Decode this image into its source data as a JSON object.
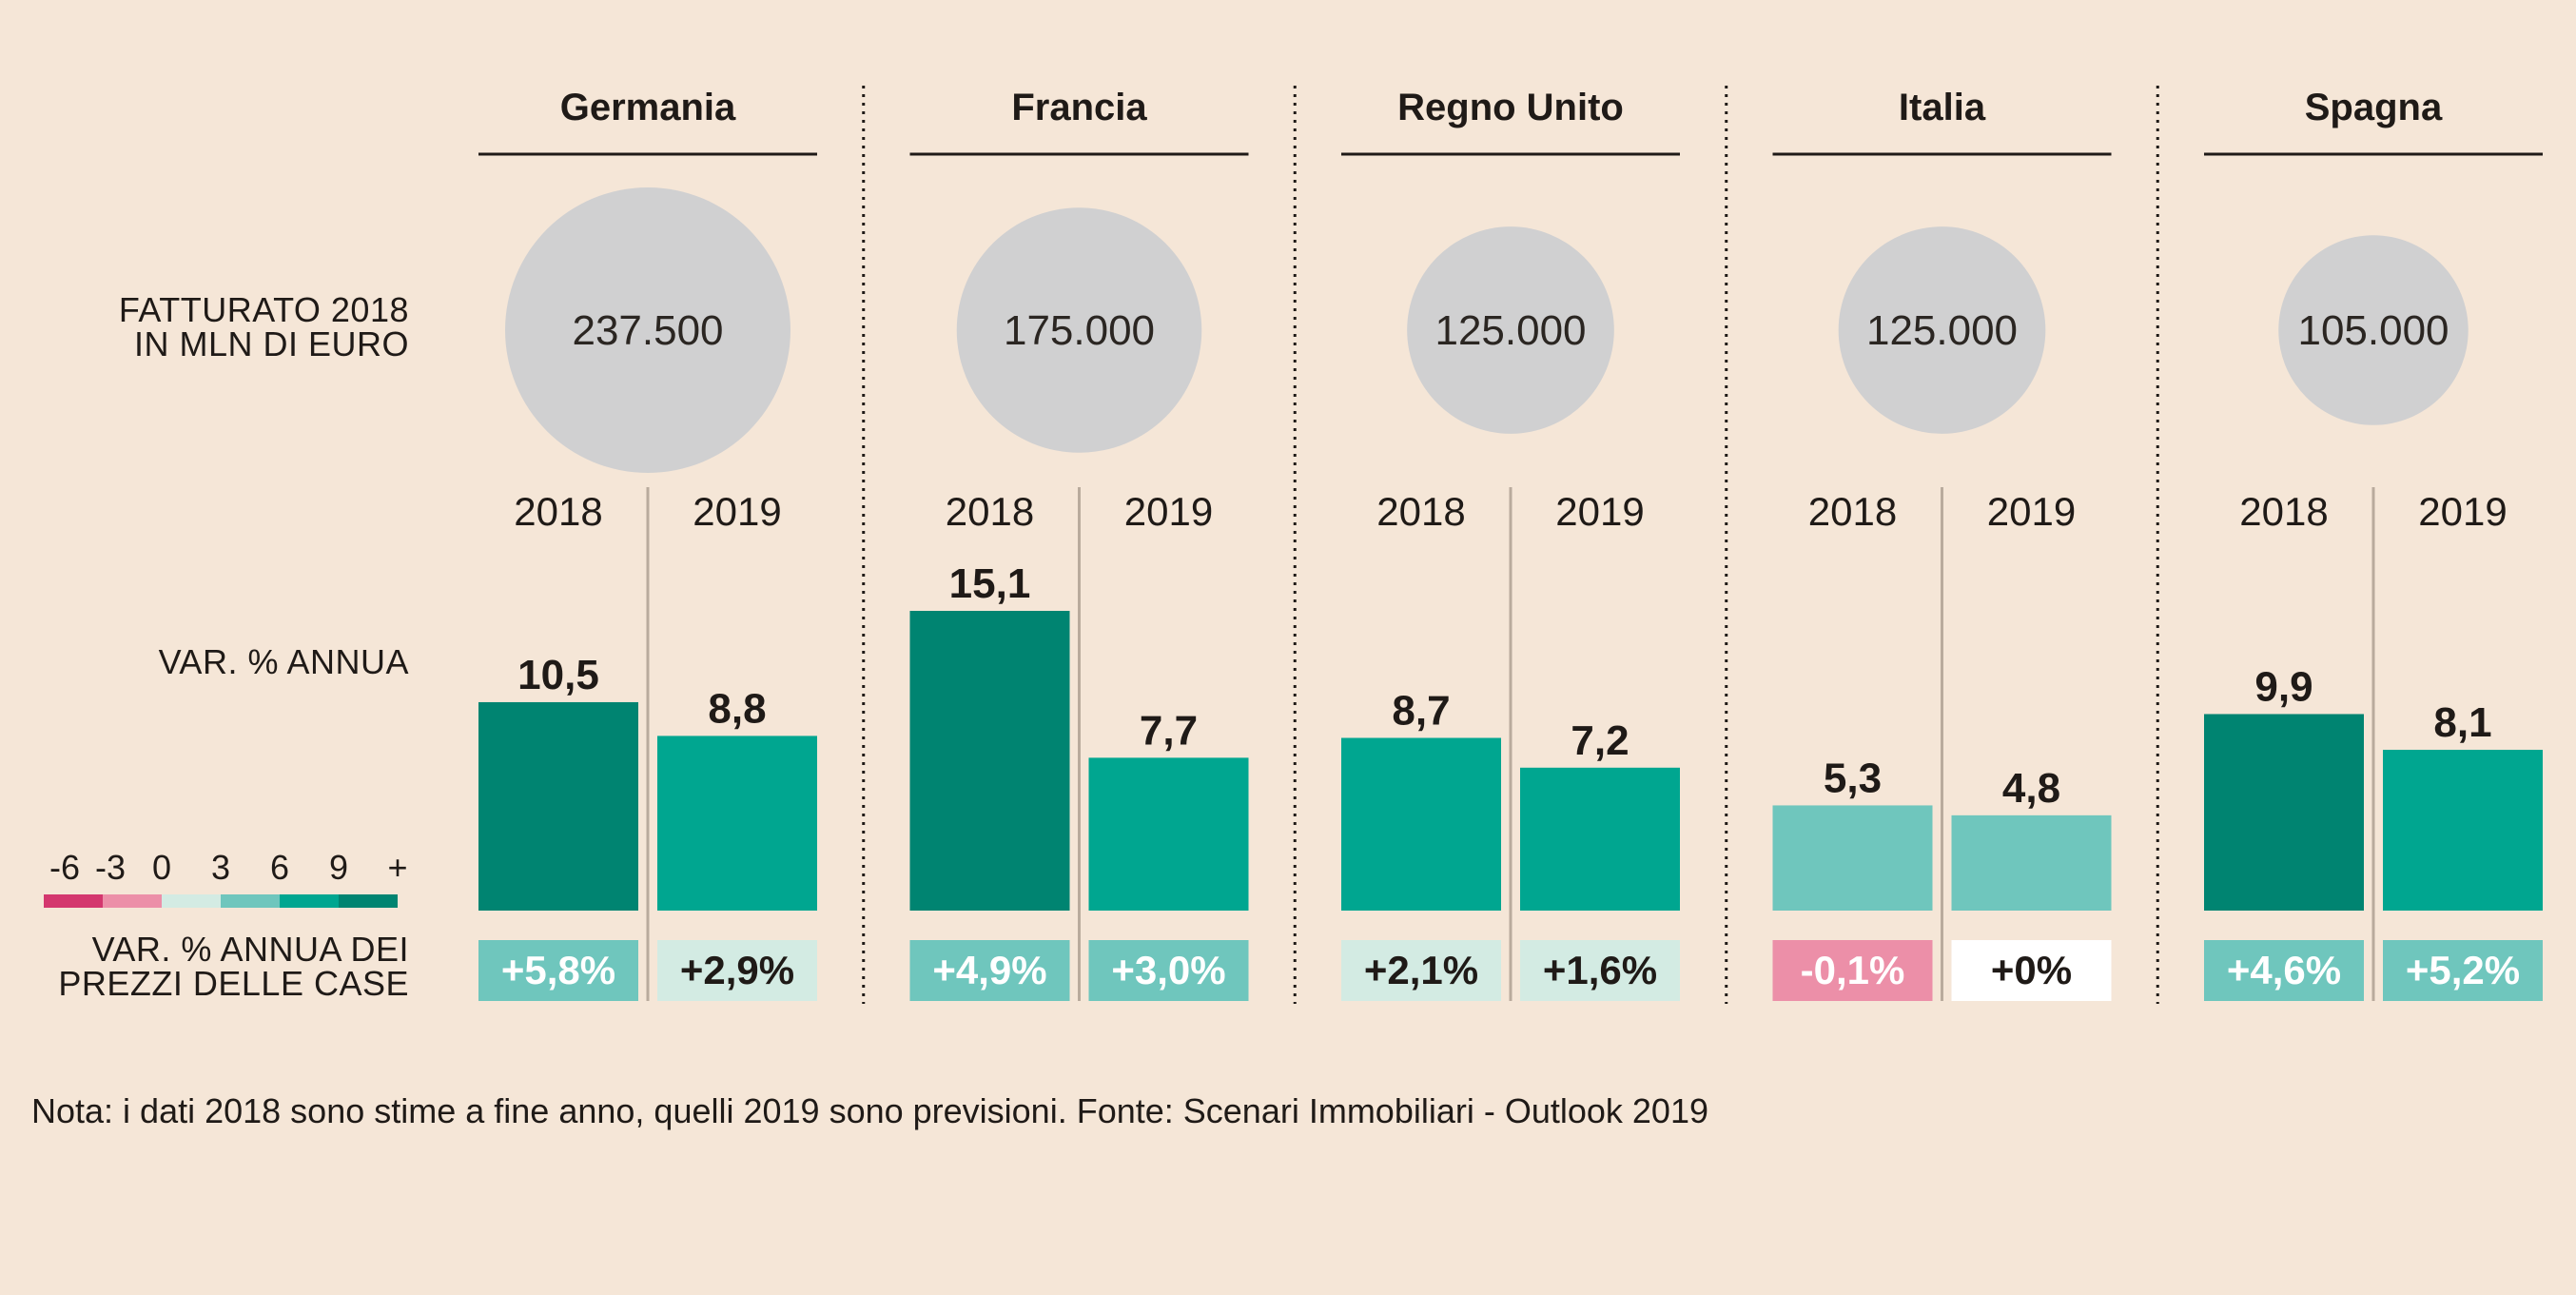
{
  "row_labels": {
    "revenue_line1": "FATTURATO 2018",
    "revenue_line2": "IN MLN DI EURO",
    "annual_change": "VAR. % ANNUA",
    "prices_line1": "VAR. % ANNUA DEI",
    "prices_line2": "PREZZI DELLE CASE"
  },
  "legend": {
    "ticks": [
      "-6",
      "-3",
      "0",
      "3",
      "6",
      "9",
      "+"
    ],
    "colors": [
      "#d4376e",
      "#ec8fa8",
      "#d3ebe3",
      "#6fc6bd",
      "#00a690",
      "#008471"
    ]
  },
  "note": "Nota: i dati 2018 sono stime a fine anno, quelli 2019 sono previsioni. Fonte: Scenari Immobiliari - Outlook 2019",
  "chart_data": {
    "type": "bar",
    "categories": [
      "Germania",
      "Francia",
      "Regno Unito",
      "Italia",
      "Spagna"
    ],
    "years": [
      "2018",
      "2019"
    ],
    "revenue_2018": [
      237500,
      175000,
      125000,
      125000,
      105000
    ],
    "revenue_labels": [
      "237.500",
      "175.000",
      "125.000",
      "125.000",
      "105.000"
    ],
    "annual_change": {
      "2018": [
        10.5,
        15.1,
        8.7,
        5.3,
        9.9
      ],
      "2019": [
        8.8,
        7.7,
        7.2,
        4.8,
        8.1
      ]
    },
    "annual_change_labels": {
      "2018": [
        "10,5",
        "15,1",
        "8,7",
        "5,3",
        "9,9"
      ],
      "2019": [
        "8,8",
        "7,7",
        "7,2",
        "4,8",
        "8,1"
      ]
    },
    "price_change": {
      "2018": [
        5.8,
        4.9,
        2.1,
        -0.1,
        4.6
      ],
      "2019": [
        2.9,
        3.0,
        1.6,
        0,
        5.2
      ]
    },
    "price_change_labels": {
      "2018": [
        "+5,8%",
        "+4,9%",
        "+2,1%",
        "-0,1%",
        "+4,6%"
      ],
      "2019": [
        "+2,9%",
        "+3,0%",
        "+1,6%",
        "+0%",
        "+5,2%"
      ]
    },
    "ylim": [
      0,
      15.1
    ]
  }
}
